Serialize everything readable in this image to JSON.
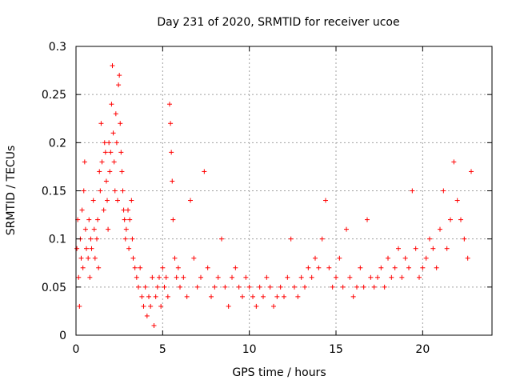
{
  "chart_data": {
    "type": "scatter",
    "title": "Day 231 of 2020, SRMTID for receiver ucoe",
    "xlabel": "GPS time / hours",
    "ylabel": "SRMTID / TECUs",
    "xlim": [
      0,
      24.0
    ],
    "ylim": [
      0,
      0.3
    ],
    "xticks": [
      0,
      5,
      10,
      15,
      20
    ],
    "xtick_labels": [
      "0",
      "5",
      "10",
      "15",
      "20"
    ],
    "yticks": [
      0,
      0.05,
      0.1,
      0.15,
      0.2,
      0.25,
      0.3
    ],
    "ytick_labels": [
      "0",
      "0.05",
      "0.1",
      "0.15",
      "0.2",
      "0.25",
      "0.3"
    ],
    "grid": true,
    "marker": "+",
    "marker_color": "#ff0000",
    "series": [
      {
        "name": "SRMTID",
        "points": [
          [
            0.05,
            0.09
          ],
          [
            0.1,
            0.12
          ],
          [
            0.15,
            0.06
          ],
          [
            0.2,
            0.03
          ],
          [
            0.25,
            0.1
          ],
          [
            0.3,
            0.08
          ],
          [
            0.35,
            0.13
          ],
          [
            0.4,
            0.07
          ],
          [
            0.45,
            0.15
          ],
          [
            0.5,
            0.18
          ],
          [
            0.55,
            0.11
          ],
          [
            0.6,
            0.09
          ],
          [
            0.7,
            0.08
          ],
          [
            0.75,
            0.12
          ],
          [
            0.8,
            0.06
          ],
          [
            0.85,
            0.1
          ],
          [
            0.9,
            0.09
          ],
          [
            1.0,
            0.14
          ],
          [
            1.05,
            0.11
          ],
          [
            1.1,
            0.08
          ],
          [
            1.2,
            0.1
          ],
          [
            1.25,
            0.12
          ],
          [
            1.3,
            0.07
          ],
          [
            1.35,
            0.17
          ],
          [
            1.4,
            0.15
          ],
          [
            1.45,
            0.22
          ],
          [
            1.5,
            0.18
          ],
          [
            1.6,
            0.13
          ],
          [
            1.65,
            0.2
          ],
          [
            1.7,
            0.19
          ],
          [
            1.75,
            0.16
          ],
          [
            1.8,
            0.14
          ],
          [
            1.85,
            0.11
          ],
          [
            1.9,
            0.2
          ],
          [
            1.95,
            0.17
          ],
          [
            2.0,
            0.19
          ],
          [
            2.05,
            0.24
          ],
          [
            2.1,
            0.28
          ],
          [
            2.15,
            0.21
          ],
          [
            2.2,
            0.18
          ],
          [
            2.25,
            0.15
          ],
          [
            2.3,
            0.23
          ],
          [
            2.35,
            0.2
          ],
          [
            2.4,
            0.14
          ],
          [
            2.45,
            0.26
          ],
          [
            2.5,
            0.27
          ],
          [
            2.55,
            0.22
          ],
          [
            2.6,
            0.19
          ],
          [
            2.65,
            0.17
          ],
          [
            2.7,
            0.15
          ],
          [
            2.75,
            0.13
          ],
          [
            2.8,
            0.12
          ],
          [
            2.85,
            0.1
          ],
          [
            2.9,
            0.11
          ],
          [
            3.0,
            0.13
          ],
          [
            3.05,
            0.09
          ],
          [
            3.1,
            0.12
          ],
          [
            3.2,
            0.14
          ],
          [
            3.25,
            0.1
          ],
          [
            3.3,
            0.08
          ],
          [
            3.4,
            0.07
          ],
          [
            3.5,
            0.06
          ],
          [
            3.6,
            0.05
          ],
          [
            3.7,
            0.07
          ],
          [
            3.8,
            0.04
          ],
          [
            3.9,
            0.03
          ],
          [
            4.0,
            0.05
          ],
          [
            4.1,
            0.02
          ],
          [
            4.2,
            0.04
          ],
          [
            4.3,
            0.03
          ],
          [
            4.4,
            0.06
          ],
          [
            4.5,
            0.01
          ],
          [
            4.6,
            0.04
          ],
          [
            4.7,
            0.05
          ],
          [
            4.8,
            0.06
          ],
          [
            4.9,
            0.03
          ],
          [
            5.0,
            0.07
          ],
          [
            5.1,
            0.05
          ],
          [
            5.2,
            0.06
          ],
          [
            5.3,
            0.04
          ],
          [
            5.4,
            0.24
          ],
          [
            5.45,
            0.22
          ],
          [
            5.5,
            0.19
          ],
          [
            5.55,
            0.16
          ],
          [
            5.6,
            0.12
          ],
          [
            5.7,
            0.08
          ],
          [
            5.8,
            0.06
          ],
          [
            5.9,
            0.07
          ],
          [
            6.0,
            0.05
          ],
          [
            6.2,
            0.06
          ],
          [
            6.4,
            0.04
          ],
          [
            6.6,
            0.14
          ],
          [
            6.8,
            0.08
          ],
          [
            7.0,
            0.05
          ],
          [
            7.2,
            0.06
          ],
          [
            7.4,
            0.17
          ],
          [
            7.6,
            0.07
          ],
          [
            7.8,
            0.04
          ],
          [
            8.0,
            0.05
          ],
          [
            8.2,
            0.06
          ],
          [
            8.4,
            0.1
          ],
          [
            8.6,
            0.05
          ],
          [
            8.8,
            0.03
          ],
          [
            9.0,
            0.06
          ],
          [
            9.2,
            0.07
          ],
          [
            9.4,
            0.05
          ],
          [
            9.6,
            0.04
          ],
          [
            9.8,
            0.06
          ],
          [
            10.0,
            0.05
          ],
          [
            10.2,
            0.04
          ],
          [
            10.4,
            0.03
          ],
          [
            10.6,
            0.05
          ],
          [
            10.8,
            0.04
          ],
          [
            11.0,
            0.06
          ],
          [
            11.2,
            0.05
          ],
          [
            11.4,
            0.03
          ],
          [
            11.6,
            0.04
          ],
          [
            11.8,
            0.05
          ],
          [
            12.0,
            0.04
          ],
          [
            12.2,
            0.06
          ],
          [
            12.4,
            0.1
          ],
          [
            12.6,
            0.05
          ],
          [
            12.8,
            0.04
          ],
          [
            13.0,
            0.06
          ],
          [
            13.2,
            0.05
          ],
          [
            13.4,
            0.07
          ],
          [
            13.6,
            0.06
          ],
          [
            13.8,
            0.08
          ],
          [
            14.0,
            0.07
          ],
          [
            14.2,
            0.1
          ],
          [
            14.4,
            0.14
          ],
          [
            14.6,
            0.07
          ],
          [
            14.8,
            0.05
          ],
          [
            15.0,
            0.06
          ],
          [
            15.2,
            0.08
          ],
          [
            15.4,
            0.05
          ],
          [
            15.6,
            0.11
          ],
          [
            15.8,
            0.06
          ],
          [
            16.0,
            0.04
          ],
          [
            16.2,
            0.05
          ],
          [
            16.4,
            0.07
          ],
          [
            16.6,
            0.05
          ],
          [
            16.8,
            0.12
          ],
          [
            17.0,
            0.06
          ],
          [
            17.2,
            0.05
          ],
          [
            17.4,
            0.06
          ],
          [
            17.6,
            0.07
          ],
          [
            17.8,
            0.05
          ],
          [
            18.0,
            0.08
          ],
          [
            18.2,
            0.06
          ],
          [
            18.4,
            0.07
          ],
          [
            18.6,
            0.09
          ],
          [
            18.8,
            0.06
          ],
          [
            19.0,
            0.08
          ],
          [
            19.2,
            0.07
          ],
          [
            19.4,
            0.15
          ],
          [
            19.6,
            0.09
          ],
          [
            19.8,
            0.06
          ],
          [
            20.0,
            0.07
          ],
          [
            20.2,
            0.08
          ],
          [
            20.4,
            0.1
          ],
          [
            20.6,
            0.09
          ],
          [
            20.8,
            0.07
          ],
          [
            21.0,
            0.11
          ],
          [
            21.2,
            0.15
          ],
          [
            21.4,
            0.09
          ],
          [
            21.6,
            0.12
          ],
          [
            21.8,
            0.18
          ],
          [
            22.0,
            0.14
          ],
          [
            22.2,
            0.12
          ],
          [
            22.4,
            0.1
          ],
          [
            22.6,
            0.08
          ],
          [
            22.8,
            0.17
          ]
        ]
      }
    ]
  }
}
